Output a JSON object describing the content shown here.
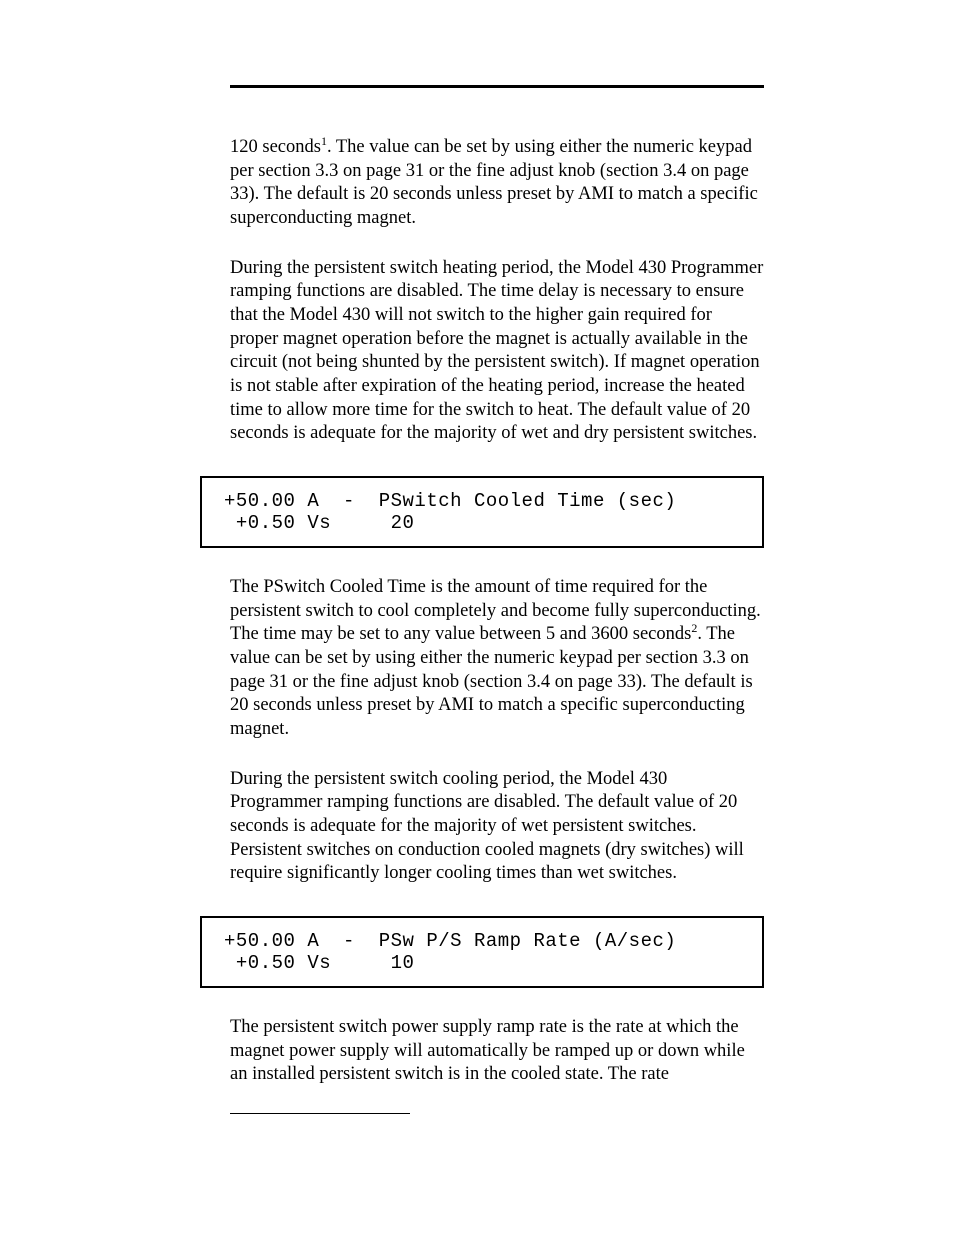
{
  "paragraphs": {
    "p1_part1": "120 seconds",
    "p1_sup": "1",
    "p1_part2": ". The value can be set by using either the numeric keypad per section 3.3 on page 31 or the fine adjust knob (section 3.4 on page 33). The default is 20 seconds unless preset by AMI to match a specific superconducting magnet.",
    "p2": "During the persistent switch heating period, the Model 430 Programmer ramping functions are disabled. The time delay is necessary to ensure that the Model 430 will not switch to the higher gain required for proper magnet operation before the magnet is actually available in the circuit (not being shunted by the persistent switch). If magnet operation is not stable after expiration of the heating period, increase the heated time to allow more time for the switch to heat. The default value of 20 seconds is adequate for the majority of wet and dry persistent switches.",
    "p3_part1": "The PSwitch Cooled Time is the amount of time required for the persistent switch to cool completely and become fully superconducting. The time may be set to any value between 5 and 3600 seconds",
    "p3_sup": "2",
    "p3_part2": ". The value can be set by using either the numeric keypad per section 3.3 on page 31 or the fine adjust knob (section 3.4 on page 33). The default is 20 seconds unless preset by AMI to match a specific superconducting magnet.",
    "p4": "During the persistent switch cooling period, the Model 430 Programmer ramping functions are disabled. The default value of 20 seconds is adequate for the majority of wet persistent switches. Persistent switches on conduction cooled magnets (dry switches) will require significantly longer cooling times than wet switches.",
    "p5": "The persistent switch power supply ramp rate is the rate at which the magnet power supply will automatically be ramped up or down while an installed persistent switch is in the cooled state. The rate"
  },
  "lcd1": {
    "line1": "+50.00 A  -  PSwitch Cooled Time (sec)",
    "line2": " +0.50 Vs     20"
  },
  "lcd2": {
    "line1": "+50.00 A  -  PSw P/S Ramp Rate (A/sec)",
    "line2": " +0.50 Vs     10"
  }
}
